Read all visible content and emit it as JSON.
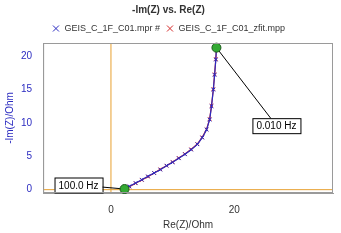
{
  "chart_data": {
    "type": "scatter",
    "title": "-Im(Z) vs. Re(Z)",
    "x_label": "Re(Z)/Ohm",
    "y_label": "-Im(Z)/Ohm",
    "xlim": [
      -11,
      36
    ],
    "ylim": [
      -0.5,
      22
    ],
    "xticks": [
      0,
      20
    ],
    "yticks": [
      0,
      5,
      10,
      15,
      20
    ],
    "grid": false,
    "legend": "top",
    "series": [
      {
        "name": "GEIS_C_1F_C01.mpr #",
        "color": "#2b2bc0",
        "marker": "x",
        "line_style": "solid",
        "x": [
          2.2,
          3,
          4,
          5,
          6,
          7,
          8,
          9,
          10,
          11,
          12,
          13,
          14,
          14.8,
          15.5,
          16,
          16.3,
          16.6,
          16.8,
          17,
          17.1
        ],
        "values": [
          0.1,
          0.5,
          1,
          1.5,
          2,
          2.5,
          3,
          3.6,
          4.1,
          4.7,
          5.3,
          6,
          6.8,
          7.8,
          9,
          10.5,
          12.5,
          15,
          17.2,
          19.5,
          21.3
        ]
      },
      {
        "name": "GEIS_C_1F_C01_zfit.mpp",
        "color": "#d42a2a",
        "marker": "x",
        "line_style": "solid",
        "x": [
          2.2,
          3,
          4,
          5,
          6,
          7,
          8,
          9,
          10,
          11,
          12,
          13,
          14,
          14.8,
          15.5,
          16,
          16.3,
          16.6,
          16.8,
          17,
          17.1
        ],
        "values": [
          0.1,
          0.45,
          0.95,
          1.45,
          1.95,
          2.5,
          3.05,
          3.6,
          4.15,
          4.75,
          5.35,
          6.05,
          6.85,
          7.85,
          9.05,
          10.6,
          12.6,
          15.1,
          17.3,
          19.6,
          21.3
        ]
      }
    ],
    "annotations": [
      {
        "text": "100.0 Hz",
        "x": 2.2,
        "y": 0.1
      },
      {
        "text": "0.010 Hz",
        "x": 17.1,
        "y": 21.3
      }
    ]
  }
}
